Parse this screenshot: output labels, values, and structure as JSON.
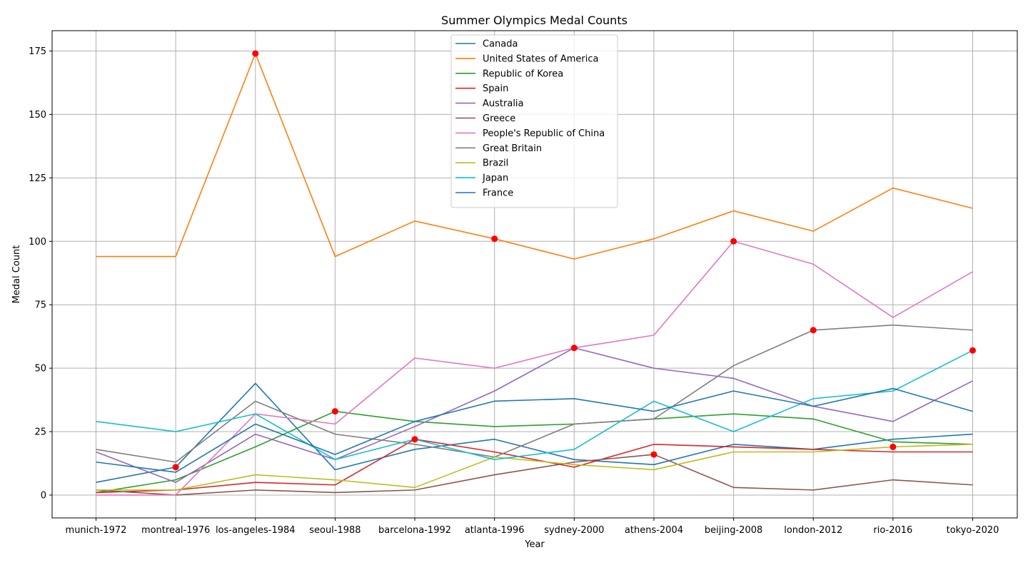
{
  "chart_data": {
    "type": "line",
    "title": "Summer Olympics Medal Counts",
    "xlabel": "Year",
    "ylabel": "Medal Count",
    "categories": [
      "munich-1972",
      "montreal-1976",
      "los-angeles-1984",
      "seoul-1988",
      "barcelona-1992",
      "atlanta-1996",
      "sydney-2000",
      "athens-2004",
      "beijing-2008",
      "london-2012",
      "rio-2016",
      "tokyo-2020"
    ],
    "ylim": [
      -9,
      183
    ],
    "yticks": [
      0,
      25,
      50,
      75,
      100,
      125,
      150,
      175
    ],
    "grid": true,
    "legend_position": "top-center",
    "series": [
      {
        "name": "Canada",
        "color": "#1f77b4",
        "values": [
          5,
          11,
          44,
          10,
          18,
          22,
          14,
          12,
          20,
          18,
          22,
          24
        ]
      },
      {
        "name": "United States of America",
        "color": "#ff7f0e",
        "values": [
          94,
          94,
          174,
          94,
          108,
          101,
          93,
          101,
          112,
          104,
          121,
          113
        ]
      },
      {
        "name": "Republic of Korea",
        "color": "#2ca02c",
        "values": [
          1,
          6,
          19,
          33,
          29,
          27,
          28,
          30,
          32,
          30,
          21,
          20
        ]
      },
      {
        "name": "Spain",
        "color": "#d62728",
        "values": [
          1,
          2,
          5,
          4,
          22,
          17,
          11,
          20,
          19,
          18,
          17,
          17
        ]
      },
      {
        "name": "Australia",
        "color": "#9467bd",
        "values": [
          17,
          5,
          24,
          14,
          27,
          41,
          58,
          50,
          46,
          35,
          29,
          45
        ]
      },
      {
        "name": "Greece",
        "color": "#8c564b",
        "values": [
          2,
          0,
          2,
          1,
          2,
          8,
          13,
          16,
          3,
          2,
          6,
          4
        ]
      },
      {
        "name": "People's Republic of China",
        "color": "#e377c2",
        "values": [
          0,
          0,
          32,
          28,
          54,
          50,
          58,
          63,
          100,
          91,
          70,
          88
        ]
      },
      {
        "name": "Great Britain",
        "color": "#7f7f7f",
        "values": [
          18,
          13,
          37,
          24,
          20,
          15,
          28,
          30,
          51,
          65,
          67,
          65
        ]
      },
      {
        "name": "Brazil",
        "color": "#bcbd22",
        "values": [
          2,
          2,
          8,
          6,
          3,
          15,
          12,
          10,
          17,
          17,
          19,
          20
        ]
      },
      {
        "name": "Japan",
        "color": "#17becf",
        "values": [
          29,
          25,
          32,
          14,
          22,
          14,
          18,
          37,
          25,
          38,
          41,
          57
        ]
      },
      {
        "name": "France",
        "color": "#1f77b4",
        "values": [
          13,
          9,
          28,
          16,
          29,
          37,
          38,
          33,
          41,
          35,
          42,
          33
        ]
      }
    ],
    "markers": {
      "color": "#ff0000",
      "points": [
        {
          "x": "montreal-1976",
          "y": 11
        },
        {
          "x": "los-angeles-1984",
          "y": 174
        },
        {
          "x": "seoul-1988",
          "y": 33
        },
        {
          "x": "barcelona-1992",
          "y": 22
        },
        {
          "x": "atlanta-1996",
          "y": 101
        },
        {
          "x": "sydney-2000",
          "y": 58
        },
        {
          "x": "athens-2004",
          "y": 16
        },
        {
          "x": "beijing-2008",
          "y": 100
        },
        {
          "x": "london-2012",
          "y": 65
        },
        {
          "x": "rio-2016",
          "y": 19
        },
        {
          "x": "tokyo-2020",
          "y": 57
        }
      ]
    }
  }
}
